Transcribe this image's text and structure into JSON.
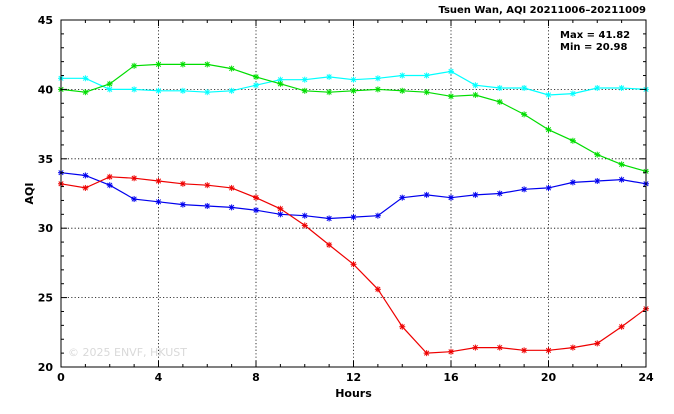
{
  "chart_data": {
    "type": "line",
    "title": "Tsuen Wan, AQI 20211006–20211009",
    "xlabel": "Hours",
    "ylabel": "AQI",
    "xlim": [
      0,
      24
    ],
    "ylim": [
      20,
      45
    ],
    "xticks": [
      0,
      4,
      8,
      12,
      16,
      20,
      24
    ],
    "yticks": [
      20,
      25,
      30,
      35,
      40,
      45
    ],
    "grid": true,
    "stats": {
      "max": "Max = 41.82",
      "min": "Min = 20.98"
    },
    "watermark": "© 2025 ENVF, HKUST",
    "x": [
      0,
      1,
      2,
      3,
      4,
      5,
      6,
      7,
      8,
      9,
      10,
      11,
      12,
      13,
      14,
      15,
      16,
      17,
      18,
      19,
      20,
      21,
      22,
      23,
      24
    ],
    "series": [
      {
        "color": "#00ffff",
        "values": [
          40.8,
          40.8,
          40.0,
          40.0,
          39.9,
          39.9,
          39.8,
          39.9,
          40.3,
          40.7,
          40.7,
          40.9,
          40.7,
          40.8,
          41.0,
          41.0,
          41.3,
          40.3,
          40.1,
          40.1,
          39.6,
          39.7,
          40.1,
          40.1,
          40.0
        ]
      },
      {
        "color": "#00dd00",
        "values": [
          40.0,
          39.8,
          40.4,
          41.7,
          41.8,
          41.8,
          41.8,
          41.5,
          40.9,
          40.4,
          39.9,
          39.8,
          39.9,
          40.0,
          39.9,
          39.8,
          39.5,
          39.6,
          39.1,
          38.2,
          37.1,
          36.3,
          35.3,
          34.6,
          34.1
        ]
      },
      {
        "color": "#0000ee",
        "values": [
          34.0,
          33.8,
          33.1,
          32.1,
          31.9,
          31.7,
          31.6,
          31.5,
          31.3,
          31.0,
          30.9,
          30.7,
          30.8,
          30.9,
          32.2,
          32.4,
          32.2,
          32.4,
          32.5,
          32.8,
          32.9,
          33.3,
          33.4,
          33.5,
          33.2
        ]
      },
      {
        "color": "#ee0000",
        "values": [
          33.2,
          32.9,
          33.7,
          33.6,
          33.4,
          33.2,
          33.1,
          32.9,
          32.2,
          31.4,
          30.2,
          28.8,
          27.4,
          25.6,
          22.9,
          21.0,
          21.1,
          21.4,
          21.4,
          21.2,
          21.2,
          21.4,
          21.7,
          22.9,
          24.2
        ]
      }
    ]
  }
}
